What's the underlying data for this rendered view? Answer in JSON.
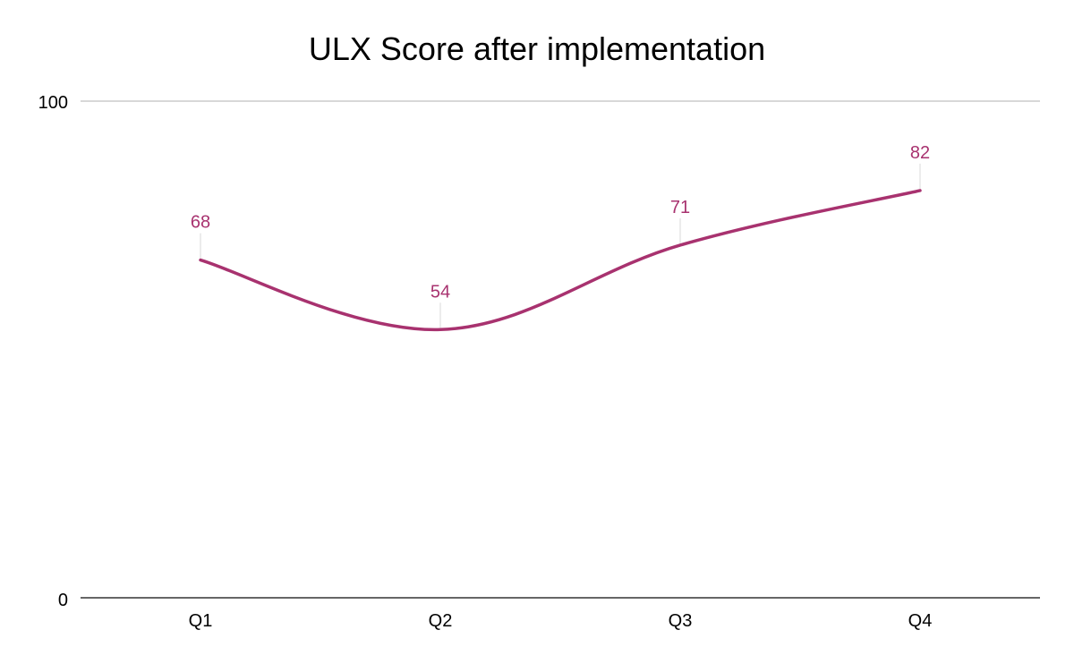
{
  "chart_data": {
    "type": "line",
    "title": "ULX Score after implementation",
    "categories": [
      "Q1",
      "Q2",
      "Q3",
      "Q4"
    ],
    "series": [
      {
        "name": "ULX Score",
        "values": [
          68,
          54,
          71,
          82
        ],
        "color": "#a8326f"
      }
    ],
    "xlabel": "",
    "ylabel": "",
    "ylim": [
      0,
      100
    ],
    "yticks": [
      "0",
      "100"
    ],
    "data_labels": [
      "68",
      "54",
      "71",
      "82"
    ],
    "grid": true,
    "legend": "none",
    "smooth": true
  }
}
